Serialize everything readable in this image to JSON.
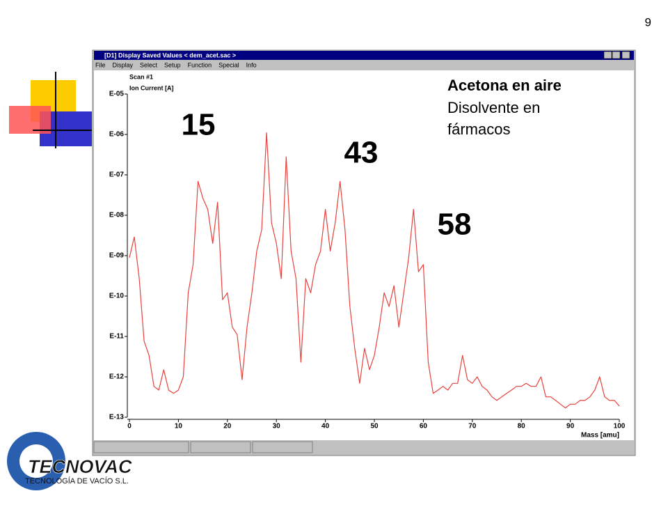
{
  "page_number": "9",
  "window": {
    "title": "[D1] Display Saved Values  < dem_acet.sac >",
    "menu": [
      "File",
      "Display",
      "Select",
      "Setup",
      "Function",
      "Special",
      "Info"
    ]
  },
  "logo": {
    "name": "TECNOVAC",
    "tagline": "TECNOLOGÍA DE VACÍO S.L."
  },
  "chart_data": {
    "type": "line",
    "scan": "Scan #1",
    "ylabel": "Ion Current [A]",
    "xlabel": "Mass [amu]",
    "notes": [
      "Acetona en aire",
      "Disolvente en",
      "fármacos"
    ],
    "annotations": [
      "15",
      "43",
      "58"
    ],
    "ylog": true,
    "x": [
      0,
      1,
      2,
      3,
      4,
      5,
      6,
      7,
      8,
      9,
      10,
      11,
      12,
      13,
      14,
      15,
      16,
      17,
      18,
      19,
      20,
      21,
      22,
      23,
      24,
      25,
      26,
      27,
      28,
      29,
      30,
      31,
      32,
      33,
      34,
      35,
      36,
      37,
      38,
      39,
      40,
      41,
      42,
      43,
      44,
      45,
      46,
      47,
      48,
      49,
      50,
      51,
      52,
      53,
      54,
      55,
      56,
      57,
      58,
      59,
      60,
      61,
      62,
      63,
      64,
      65,
      66,
      67,
      68,
      69,
      70,
      71,
      72,
      73,
      74,
      75,
      76,
      77,
      78,
      79,
      80,
      81,
      82,
      83,
      84,
      85,
      86,
      87,
      88,
      89,
      90,
      91,
      92,
      93,
      94,
      95,
      96,
      97,
      98,
      99,
      100
    ],
    "series": [
      {
        "color": "#e8413c",
        "values": [
          8.9e-10,
          2.9e-09,
          2.7e-10,
          7.6e-12,
          3.4e-12,
          5.8e-13,
          4.7e-13,
          1.5e-12,
          4.7e-13,
          3.9e-13,
          4.7e-13,
          1e-12,
          1.2e-10,
          6e-10,
          6.9e-08,
          2.6e-08,
          1.4e-08,
          2e-09,
          2.1e-08,
          8.1e-11,
          1.2e-10,
          1.7e-11,
          1.1e-11,
          8.5e-13,
          1.7e-11,
          1.2e-10,
          1.3e-09,
          4.4e-09,
          1.1e-06,
          6.5e-09,
          2e-09,
          2.7e-10,
          2.8e-07,
          1.3e-09,
          2.7e-10,
          2.3e-12,
          2.7e-10,
          1.2e-10,
          6e-10,
          1.3e-09,
          1.4e-08,
          1.3e-09,
          6.5e-09,
          6.9e-08,
          4.4e-09,
          5.5e-11,
          5.1e-12,
          6.9e-13,
          5.1e-12,
          1.5e-12,
          3.4e-12,
          1.7e-11,
          1.2e-10,
          5.5e-11,
          1.8e-10,
          1.7e-11,
          1.2e-10,
          8.9e-10,
          1.4e-08,
          4e-10,
          6e-10,
          2.3e-12,
          3.9e-13,
          4.7e-13,
          5.8e-13,
          4.7e-13,
          6.9e-13,
          6.9e-13,
          3.4e-12,
          8.5e-13,
          6.9e-13,
          1e-12,
          5.8e-13,
          4.7e-13,
          3.2e-13,
          2.6e-13,
          3.2e-13,
          3.9e-13,
          4.7e-13,
          5.8e-13,
          5.8e-13,
          6.9e-13,
          5.8e-13,
          5.8e-13,
          1e-12,
          3.2e-13,
          3.2e-13,
          2.6e-13,
          2.1e-13,
          1.7e-13,
          2.1e-13,
          2.1e-13,
          2.6e-13,
          2.6e-13,
          3.2e-13,
          4.7e-13,
          1e-12,
          3.2e-13,
          2.6e-13,
          2.6e-13,
          1.9e-13
        ]
      }
    ],
    "xlim": [
      0,
      100
    ],
    "xticks": [
      0,
      10,
      20,
      30,
      40,
      50,
      60,
      70,
      80,
      90,
      100
    ],
    "ylim": [
      1e-13,
      1e-05
    ],
    "yticks": [
      {
        "value": 1e-05,
        "label": "E-05"
      },
      {
        "value": 1e-06,
        "label": "E-06"
      },
      {
        "value": 1e-07,
        "label": "E-07"
      },
      {
        "value": 1e-08,
        "label": "E-08"
      },
      {
        "value": 1e-09,
        "label": "E-09"
      },
      {
        "value": 1e-10,
        "label": "E-10"
      },
      {
        "value": 1e-11,
        "label": "E-11"
      },
      {
        "value": 1e-12,
        "label": "E-12"
      },
      {
        "value": 1e-13,
        "label": "E-13"
      }
    ]
  }
}
